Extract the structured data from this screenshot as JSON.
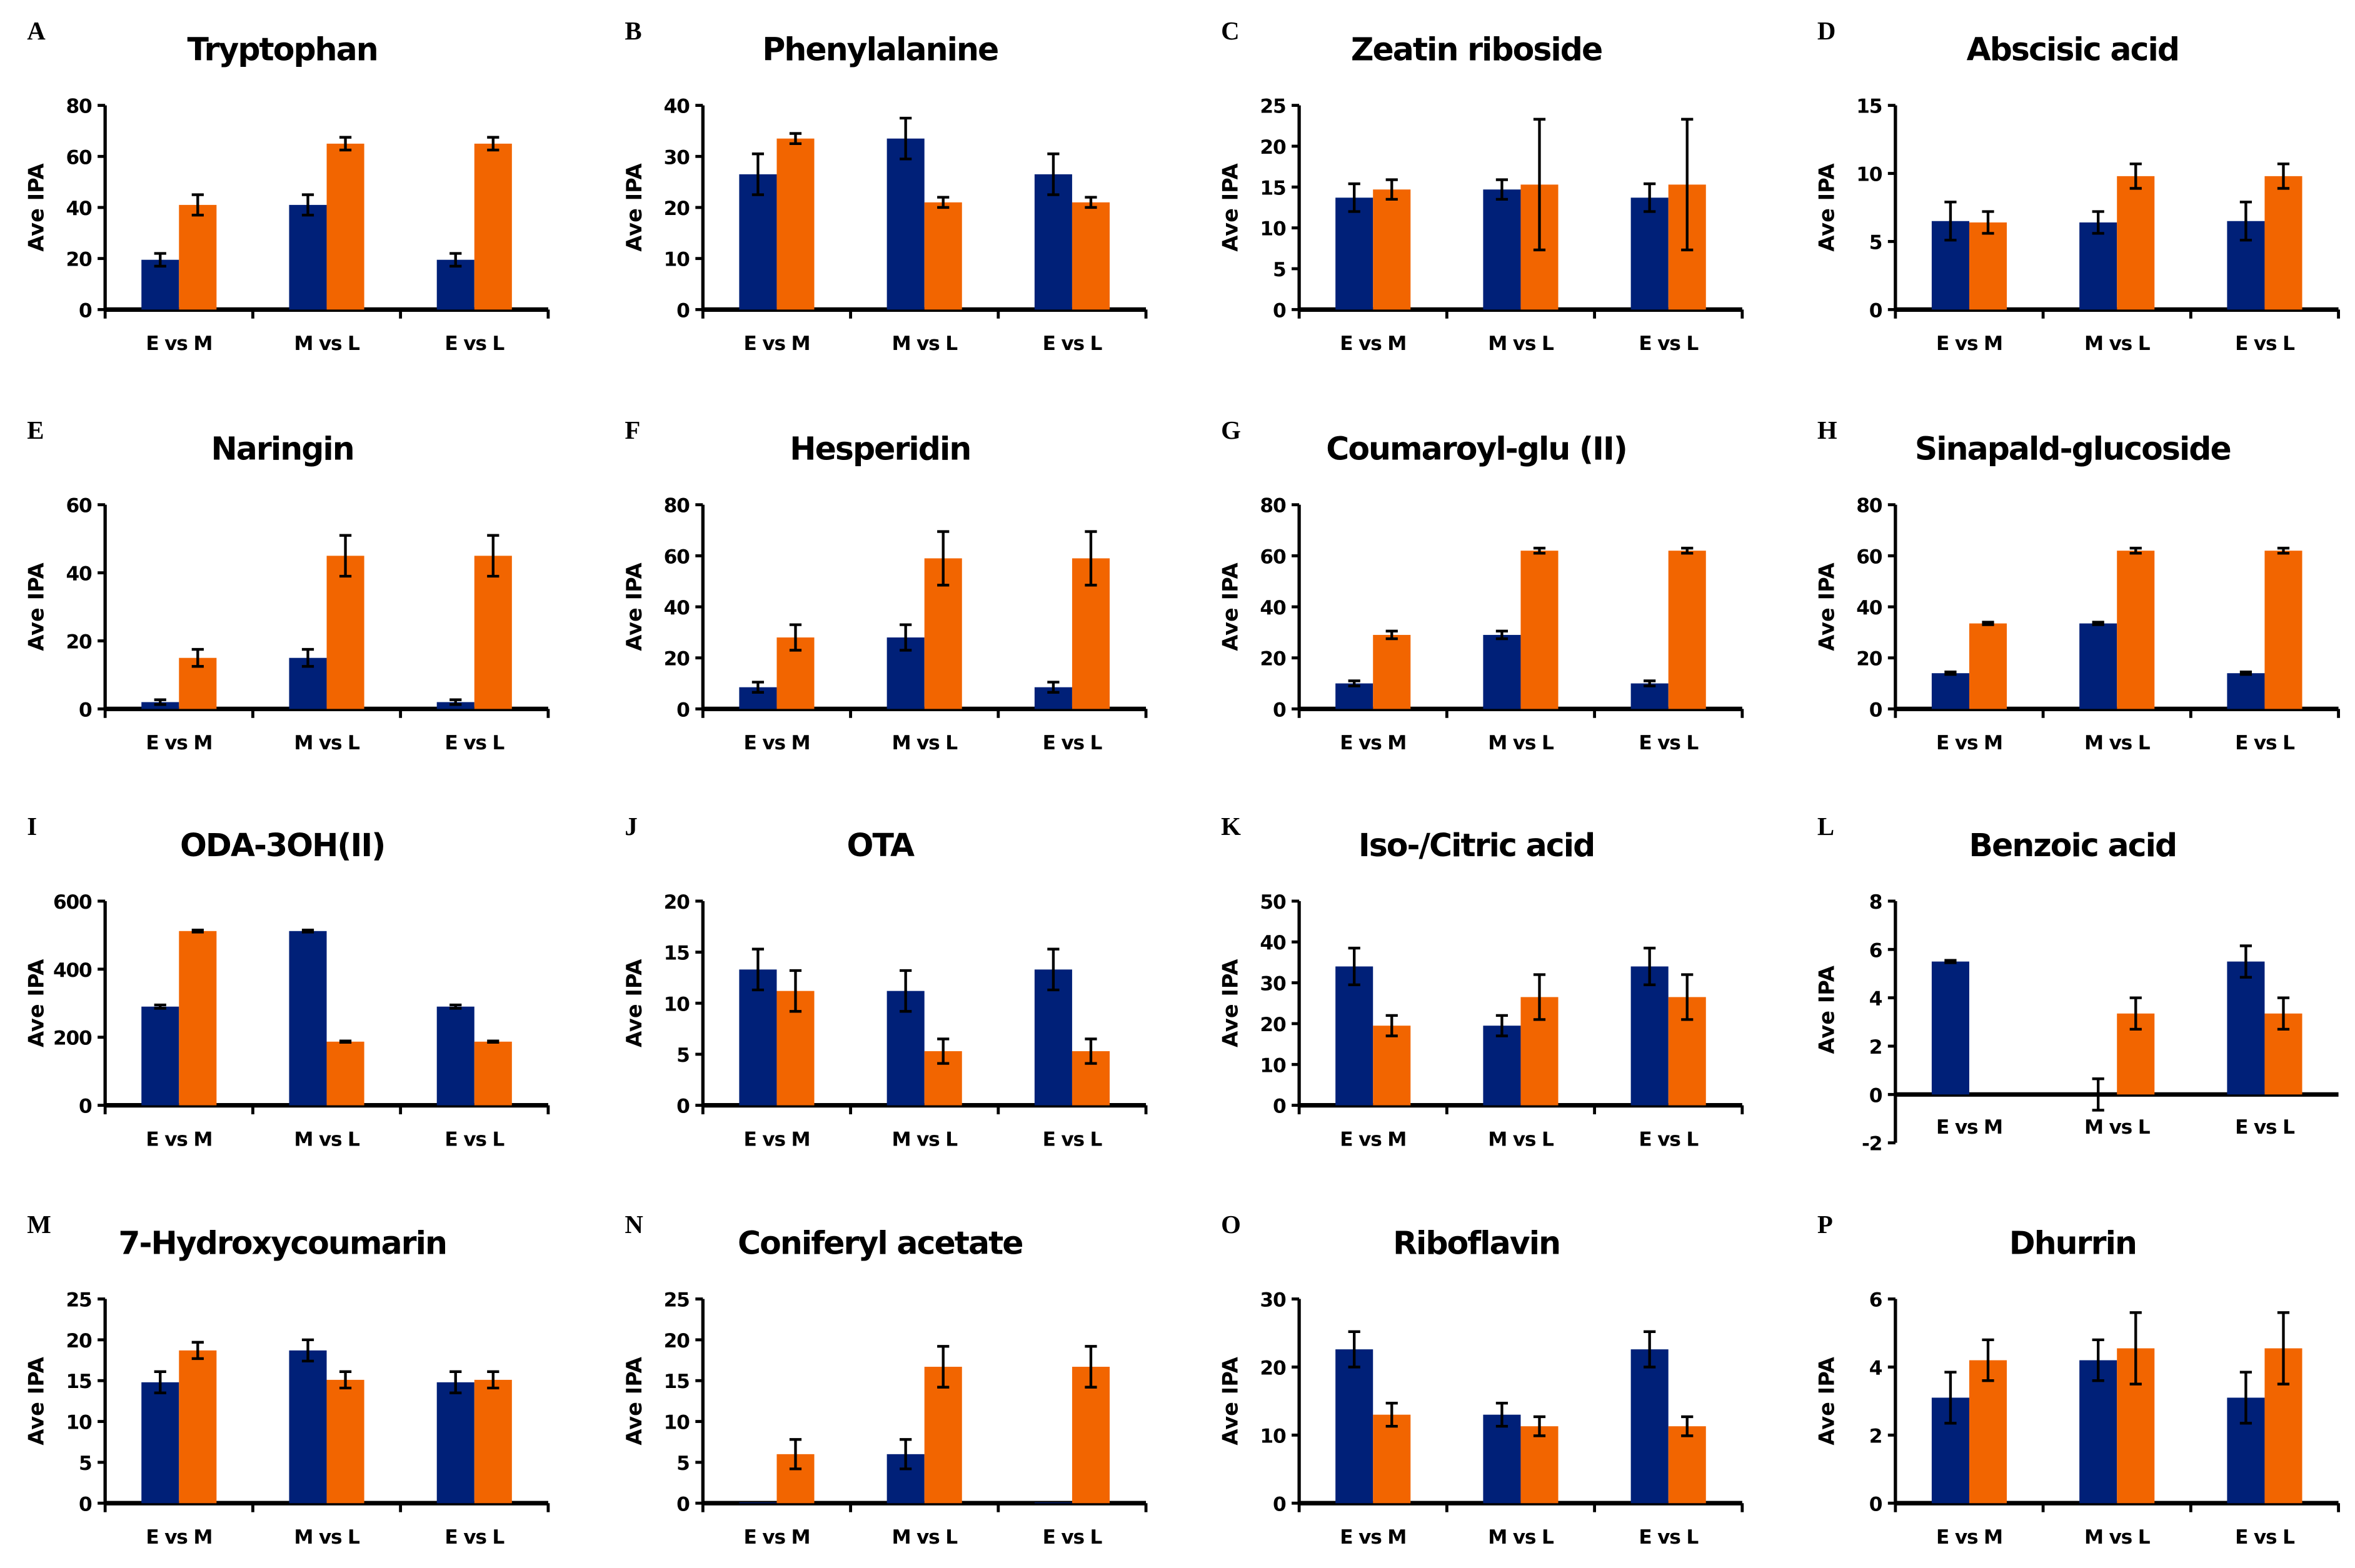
{
  "chart_data": [
    {
      "panel": "A",
      "type": "bar",
      "title": "Tryptophan",
      "ylabel": "Ave IPA",
      "categories": [
        "E vs M",
        "M vs L",
        "E vs L"
      ],
      "ylim": [
        0,
        80
      ],
      "yticks": [
        0,
        20,
        40,
        60,
        80
      ],
      "series": [
        {
          "values": [
            19.5,
            41,
            19.5
          ],
          "errors": [
            2.5,
            4,
            2.5
          ]
        },
        {
          "values": [
            41,
            65,
            65
          ],
          "errors": [
            4,
            2.5,
            2.5
          ]
        }
      ]
    },
    {
      "panel": "B",
      "type": "bar",
      "title": "Phenylalanine",
      "ylabel": "Ave IPA",
      "categories": [
        "E vs M",
        "M vs L",
        "E vs L"
      ],
      "ylim": [
        0,
        40
      ],
      "yticks": [
        0,
        10,
        20,
        30,
        40
      ],
      "series": [
        {
          "values": [
            26.5,
            33.5,
            26.5
          ],
          "errors": [
            4,
            4,
            4
          ]
        },
        {
          "values": [
            33.5,
            21,
            21
          ],
          "errors": [
            1,
            1,
            1
          ]
        }
      ]
    },
    {
      "panel": "C",
      "type": "bar",
      "title": "Zeatin riboside",
      "ylabel": "Ave IPA",
      "categories": [
        "E vs M",
        "M vs L",
        "E vs L"
      ],
      "ylim": [
        0,
        25
      ],
      "yticks": [
        0,
        5,
        10,
        15,
        20,
        25
      ],
      "series": [
        {
          "values": [
            13.7,
            14.7,
            13.7
          ],
          "errors": [
            1.7,
            1.2,
            1.7
          ]
        },
        {
          "values": [
            14.7,
            15.3,
            15.3
          ],
          "errors": [
            1.2,
            8,
            8
          ]
        }
      ]
    },
    {
      "panel": "D",
      "type": "bar",
      "title": "Abscisic acid",
      "ylabel": "Ave IPA",
      "categories": [
        "E vs M",
        "M vs L",
        "E vs L"
      ],
      "ylim": [
        0,
        15
      ],
      "yticks": [
        0,
        5,
        10,
        15
      ],
      "series": [
        {
          "values": [
            6.5,
            6.4,
            6.5
          ],
          "errors": [
            1.4,
            0.8,
            1.4
          ]
        },
        {
          "values": [
            6.4,
            9.8,
            9.8
          ],
          "errors": [
            0.8,
            0.9,
            0.9
          ]
        }
      ]
    },
    {
      "panel": "E",
      "type": "bar",
      "title": "Naringin",
      "ylabel": "Ave IPA",
      "categories": [
        "E vs M",
        "M vs L",
        "E vs L"
      ],
      "ylim": [
        0,
        60
      ],
      "yticks": [
        0,
        20,
        40,
        60
      ],
      "series": [
        {
          "values": [
            2,
            15,
            2
          ],
          "errors": [
            0.7,
            2.5,
            0.7
          ]
        },
        {
          "values": [
            15,
            45,
            45
          ],
          "errors": [
            2.5,
            6,
            6
          ]
        }
      ]
    },
    {
      "panel": "F",
      "type": "bar",
      "title": "Hesperidin",
      "ylabel": "Ave IPA",
      "categories": [
        "E vs M",
        "M vs L",
        "E vs L"
      ],
      "ylim": [
        0,
        80
      ],
      "yticks": [
        0,
        20,
        40,
        60,
        80
      ],
      "series": [
        {
          "values": [
            8.5,
            28,
            8.5
          ],
          "errors": [
            2,
            5,
            2
          ]
        },
        {
          "values": [
            28,
            59,
            59
          ],
          "errors": [
            5,
            10.5,
            10.5
          ]
        }
      ]
    },
    {
      "panel": "G",
      "type": "bar",
      "title": "Coumaroyl-glu (II)",
      "ylabel": "Ave IPA",
      "categories": [
        "E vs M",
        "M vs L",
        "E vs L"
      ],
      "ylim": [
        0,
        80
      ],
      "yticks": [
        0,
        20,
        40,
        60,
        80
      ],
      "series": [
        {
          "values": [
            10,
            29,
            10
          ],
          "errors": [
            1,
            1.5,
            1
          ]
        },
        {
          "values": [
            29,
            62,
            62
          ],
          "errors": [
            1.5,
            1,
            1
          ]
        }
      ]
    },
    {
      "panel": "H",
      "type": "bar",
      "title": "Sinapald-glucoside",
      "ylabel": "Ave IPA",
      "categories": [
        "E vs M",
        "M vs L",
        "E vs L"
      ],
      "ylim": [
        0,
        80
      ],
      "yticks": [
        0,
        20,
        40,
        60,
        80
      ],
      "series": [
        {
          "values": [
            14,
            33.5,
            14
          ],
          "errors": [
            0.5,
            0.5,
            0.5
          ]
        },
        {
          "values": [
            33.5,
            62,
            62
          ],
          "errors": [
            0.5,
            1,
            1
          ]
        }
      ]
    },
    {
      "panel": "I",
      "type": "bar",
      "title": "ODA-3OH(II)",
      "ylabel": "Ave IPA",
      "categories": [
        "E vs M",
        "M vs L",
        "E vs L"
      ],
      "ylim": [
        0,
        600
      ],
      "yticks": [
        0,
        200,
        400,
        600
      ],
      "series": [
        {
          "values": [
            290,
            512,
            290
          ],
          "errors": [
            5,
            3,
            5
          ]
        },
        {
          "values": [
            512,
            187,
            187
          ],
          "errors": [
            3,
            2,
            2
          ]
        }
      ]
    },
    {
      "panel": "J",
      "type": "bar",
      "title": "OTA",
      "ylabel": "Ave IPA",
      "categories": [
        "E vs M",
        "M vs L",
        "E vs L"
      ],
      "ylim": [
        0,
        20
      ],
      "yticks": [
        0,
        5,
        10,
        15,
        20
      ],
      "series": [
        {
          "values": [
            13.3,
            11.2,
            13.3
          ],
          "errors": [
            2,
            2,
            2
          ]
        },
        {
          "values": [
            11.2,
            5.3,
            5.3
          ],
          "errors": [
            2,
            1.2,
            1.2
          ]
        }
      ]
    },
    {
      "panel": "K",
      "type": "bar",
      "title": "Iso-/Citric acid",
      "ylabel": "Ave IPA",
      "categories": [
        "E vs M",
        "M vs L",
        "E vs L"
      ],
      "ylim": [
        0,
        50
      ],
      "yticks": [
        0,
        10,
        20,
        30,
        40,
        50
      ],
      "series": [
        {
          "values": [
            34,
            19.5,
            34
          ],
          "errors": [
            4.5,
            2.5,
            4.5
          ]
        },
        {
          "values": [
            19.5,
            26.5,
            26.5
          ],
          "errors": [
            2.5,
            5.5,
            5.5
          ]
        }
      ]
    },
    {
      "panel": "L",
      "type": "bar",
      "title": "Benzoic acid",
      "ylabel": "Ave IPA",
      "categories": [
        "E vs M",
        "M vs L",
        "E vs L"
      ],
      "ylim": [
        -2,
        8
      ],
      "yticks": [
        -2,
        0,
        2,
        4,
        6,
        8
      ],
      "series": [
        {
          "values": [
            5.5,
            0,
            5.5
          ],
          "errors": [
            0.05,
            0.65,
            0.65
          ]
        },
        {
          "values": [
            null,
            3.35,
            3.35
          ],
          "errors": [
            null,
            0.65,
            0.65
          ]
        }
      ]
    },
    {
      "panel": "M",
      "type": "bar",
      "title": "7-Hydroxycoumarin",
      "ylabel": "Ave IPA",
      "categories": [
        "E vs M",
        "M vs L",
        "E vs L"
      ],
      "ylim": [
        0,
        25
      ],
      "yticks": [
        0,
        5,
        10,
        15,
        20,
        25
      ],
      "series": [
        {
          "values": [
            14.8,
            18.7,
            14.8
          ],
          "errors": [
            1.3,
            1.3,
            1.3
          ]
        },
        {
          "values": [
            18.7,
            15.1,
            15.1
          ],
          "errors": [
            1,
            1,
            1
          ]
        }
      ]
    },
    {
      "panel": "N",
      "type": "bar",
      "title": "Coniferyl acetate",
      "ylabel": "Ave IPA",
      "categories": [
        "E vs M",
        "M vs L",
        "E vs L"
      ],
      "ylim": [
        0,
        25
      ],
      "yticks": [
        0,
        5,
        10,
        15,
        20,
        25
      ],
      "series": [
        {
          "values": [
            0.1,
            6,
            0.1
          ],
          "errors": [
            0,
            1.8,
            0
          ]
        },
        {
          "values": [
            6,
            16.7,
            16.7
          ],
          "errors": [
            1.8,
            2.5,
            2.5
          ]
        }
      ]
    },
    {
      "panel": "O",
      "type": "bar",
      "title": "Riboflavin",
      "ylabel": "Ave IPA",
      "categories": [
        "E vs M",
        "M vs L",
        "E vs L"
      ],
      "ylim": [
        0,
        30
      ],
      "yticks": [
        0,
        10,
        20,
        30
      ],
      "series": [
        {
          "values": [
            22.6,
            13,
            22.6
          ],
          "errors": [
            2.6,
            1.7,
            2.6
          ]
        },
        {
          "values": [
            13,
            11.3,
            11.3
          ],
          "errors": [
            1.7,
            1.4,
            1.4
          ]
        }
      ]
    },
    {
      "panel": "P",
      "type": "bar",
      "title": "Dhurrin",
      "ylabel": "Ave IPA",
      "categories": [
        "E vs M",
        "M vs L",
        "E vs L"
      ],
      "ylim": [
        0,
        6
      ],
      "yticks": [
        0,
        2,
        4,
        6
      ],
      "series": [
        {
          "values": [
            3.1,
            4.2,
            3.1
          ],
          "errors": [
            0.75,
            0.6,
            0.75
          ]
        },
        {
          "values": [
            4.2,
            4.55,
            4.55
          ],
          "errors": [
            0.6,
            1.05,
            1.05
          ]
        }
      ]
    }
  ],
  "colors": {
    "series1": "#002078",
    "series2": "#f26500",
    "axis": "#000000"
  },
  "legend": "none",
  "grid": false
}
